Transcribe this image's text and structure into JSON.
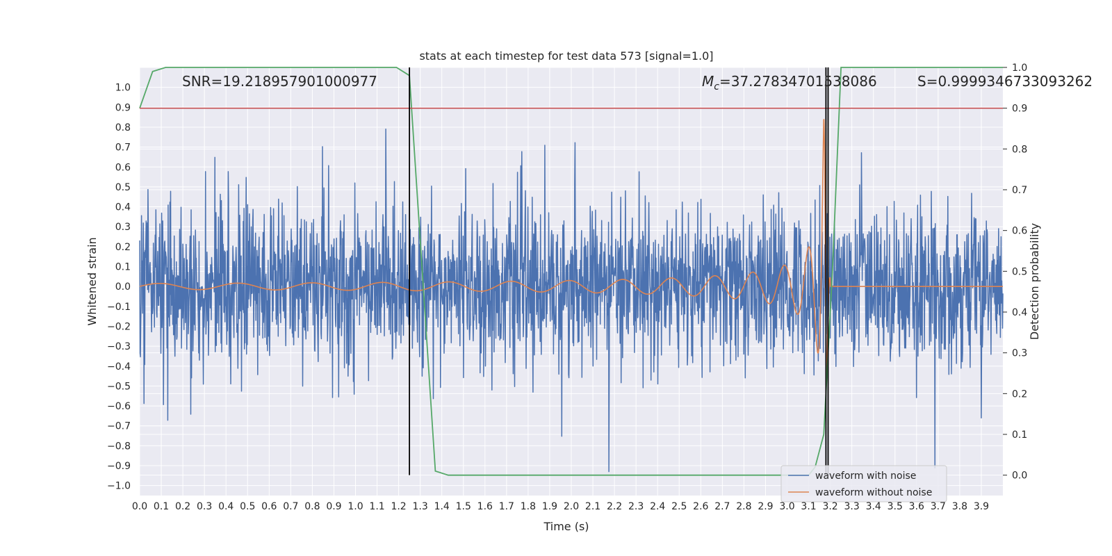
{
  "chart_data": {
    "type": "line",
    "title": "stats at each timestep for test data 573 [signal=1.0]",
    "xlabel": "Time (s)",
    "ylabel": "Whitened strain",
    "y2label": "Detection probability",
    "xlim": [
      0.0,
      4.0
    ],
    "ylim": [
      -1.05,
      1.1
    ],
    "y2lim": [
      -0.05,
      1.0
    ],
    "x_ticks": [
      "0.0",
      "0.1",
      "0.2",
      "0.3",
      "0.4",
      "0.5",
      "0.6",
      "0.7",
      "0.8",
      "0.9",
      "1.0",
      "1.1",
      "1.2",
      "1.3",
      "1.4",
      "1.5",
      "1.6",
      "1.7",
      "1.8",
      "1.9",
      "2.0",
      "2.1",
      "2.2",
      "2.3",
      "2.4",
      "2.5",
      "2.6",
      "2.7",
      "2.8",
      "2.9",
      "3.0",
      "3.1",
      "3.2",
      "3.3",
      "3.4",
      "3.5",
      "3.6",
      "3.7",
      "3.8",
      "3.9"
    ],
    "y_ticks": [
      "1.0",
      "0.9",
      "0.8",
      "0.7",
      "0.6",
      "0.5",
      "0.4",
      "0.3",
      "0.2",
      "0.1",
      "0.0",
      "−0.1",
      "−0.2",
      "−0.3",
      "−0.4",
      "−0.5",
      "−0.6",
      "−0.7",
      "−0.8",
      "−0.9",
      "−1.0"
    ],
    "y2_ticks": [
      "1.0",
      "0.9",
      "0.8",
      "0.7",
      "0.6",
      "0.5",
      "0.4",
      "0.3",
      "0.2",
      "0.1",
      "0.0"
    ],
    "annotations": {
      "snr": "SNR=19.218957901000977",
      "mc_symbol": "M",
      "mc_sub": "c",
      "mc_value": "=37.27834701538086",
      "s": "S=0.9999346733093262"
    },
    "threshold": 0.9,
    "vlines": [
      1.25,
      3.18,
      3.19
    ],
    "series": [
      {
        "name": "waveform with noise",
        "color": "#4c72b0",
        "axis": "left",
        "kind": "noise",
        "amplitude_typical": 0.2,
        "amplitude_max": 0.93
      },
      {
        "name": "waveform without noise",
        "color": "#dd8452",
        "axis": "left",
        "kind": "chirp",
        "merger_time": 3.18
      },
      {
        "name": "detection probability",
        "color": "#55a868",
        "axis": "right",
        "x": [
          0.0,
          0.06,
          0.12,
          0.5,
          1.0,
          1.19,
          1.25,
          1.37,
          1.43,
          2.0,
          3.0,
          3.1,
          3.13,
          3.17,
          3.21,
          3.25,
          3.5,
          4.0
        ],
        "y": [
          0.9,
          0.99,
          1.0,
          1.0,
          1.0,
          1.0,
          0.98,
          0.01,
          0.0,
          0.0,
          0.0,
          0.0,
          0.02,
          0.1,
          0.5,
          1.0,
          1.0,
          1.0
        ]
      }
    ],
    "legend": [
      {
        "label": "waveform with noise",
        "color": "#4c72b0"
      },
      {
        "label": "waveform without noise",
        "color": "#dd8452"
      }
    ],
    "colors": {
      "background": "#eaeaf2",
      "grid": "#ffffff",
      "threshold": "#c44e52",
      "vline": "#000000"
    }
  }
}
